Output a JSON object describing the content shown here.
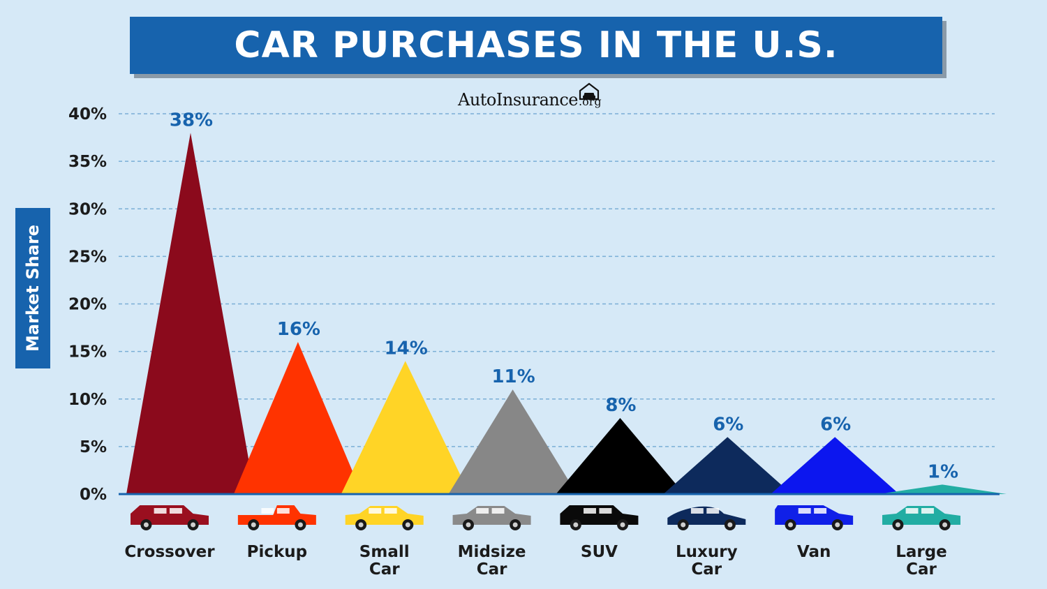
{
  "header": {
    "title": "CAR PURCHASES IN THE U.S.",
    "brand_name": "AutoInsurance",
    "brand_tld": ".org",
    "brand_icon": "garage-car-icon"
  },
  "chart_data": {
    "type": "area",
    "title": "CAR PURCHASES IN THE U.S.",
    "xlabel": "",
    "ylabel": "Market Share",
    "ylim": [
      0,
      40
    ],
    "yticks": [
      "0%",
      "5%",
      "10%",
      "15%",
      "20%",
      "25%",
      "30%",
      "35%",
      "40%"
    ],
    "grid": true,
    "categories": [
      {
        "label": [
          "Crossover"
        ],
        "value": 38,
        "display": "38%",
        "color": "#8b0a1c",
        "icon": "crossover-car-icon",
        "icon_color": "#9a0f1f"
      },
      {
        "label": [
          "Pickup"
        ],
        "value": 16,
        "display": "16%",
        "color": "#ff3300",
        "icon": "pickup-truck-icon",
        "icon_color": "#ff3300"
      },
      {
        "label": [
          "Small",
          "Car"
        ],
        "value": 14,
        "display": "14%",
        "color": "#ffd426",
        "icon": "small-car-icon",
        "icon_color": "#ffd426"
      },
      {
        "label": [
          "Midsize",
          "Car"
        ],
        "value": 11,
        "display": "11%",
        "color": "#878787",
        "icon": "midsize-car-icon",
        "icon_color": "#8a8a8a"
      },
      {
        "label": [
          "SUV"
        ],
        "value": 8,
        "display": "8%",
        "color": "#000000",
        "icon": "suv-icon",
        "icon_color": "#0a0a0a"
      },
      {
        "label": [
          "Luxury",
          "Car"
        ],
        "value": 6,
        "display": "6%",
        "color": "#0d2a5c",
        "icon": "luxury-car-icon",
        "icon_color": "#0d2a5c"
      },
      {
        "label": [
          "Van"
        ],
        "value": 6,
        "display": "6%",
        "color": "#0c16ef",
        "icon": "van-icon",
        "icon_color": "#1020e8"
      },
      {
        "label": [
          "Large",
          "Car"
        ],
        "value": 1,
        "display": "1%",
        "color": "#22ada3",
        "icon": "large-car-icon",
        "icon_color": "#22ada3"
      }
    ]
  }
}
